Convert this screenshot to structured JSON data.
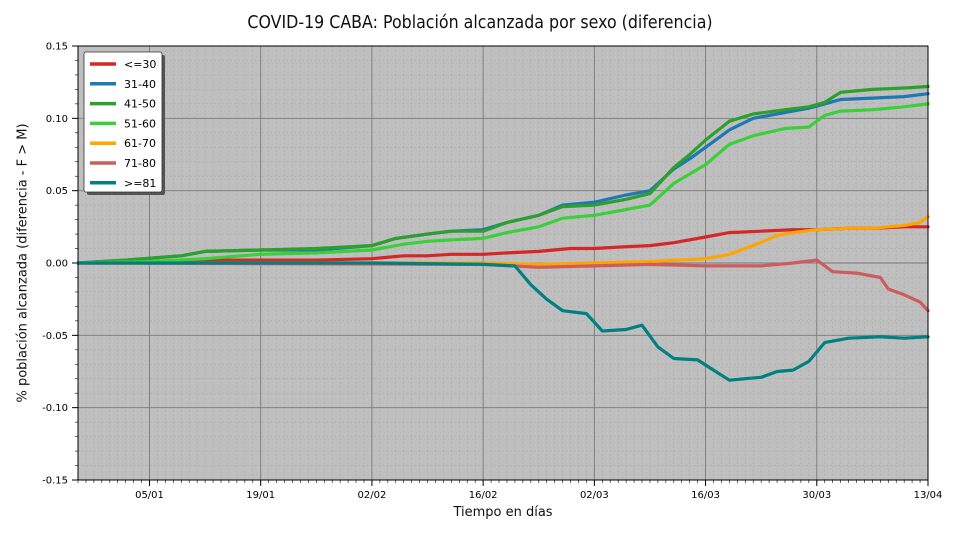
{
  "chart_data": {
    "type": "line",
    "title": "COVID-19 CABA: Población alcanzada por sexo (diferencia)",
    "xlabel": "Tiempo en días",
    "ylabel": "% población alcanzada (diferencia - F > M)",
    "x_type": "date",
    "xlim": [
      "2021-12-27",
      "2022-04-13"
    ],
    "ylim": [
      -0.15,
      0.15
    ],
    "x_ticks": [
      {
        "date": "2022-01-05",
        "label": "05/01"
      },
      {
        "date": "2022-01-19",
        "label": "19/01"
      },
      {
        "date": "2022-02-02",
        "label": "02/02"
      },
      {
        "date": "2022-02-16",
        "label": "16/02"
      },
      {
        "date": "2022-03-02",
        "label": "02/03"
      },
      {
        "date": "2022-03-16",
        "label": "16/03"
      },
      {
        "date": "2022-03-30",
        "label": "30/03"
      },
      {
        "date": "2022-04-13",
        "label": "13/04"
      }
    ],
    "y_ticks": [
      {
        "value": -0.15,
        "label": "-0.15"
      },
      {
        "value": -0.1,
        "label": "-0.10"
      },
      {
        "value": -0.05,
        "label": "-0.05"
      },
      {
        "value": 0.0,
        "label": "0.00"
      },
      {
        "value": 0.05,
        "label": "0.05"
      },
      {
        "value": 0.1,
        "label": "0.10"
      },
      {
        "value": 0.15,
        "label": "0.15"
      }
    ],
    "grid": true,
    "background": "#bfbfbf",
    "legend_position": "top-left",
    "series": [
      {
        "name": "<=30",
        "color": "#d62728",
        "points": [
          [
            "2021-12-27",
            0.0
          ],
          [
            "2022-01-05",
            0.0
          ],
          [
            "2022-01-12",
            0.002
          ],
          [
            "2022-01-19",
            0.002
          ],
          [
            "2022-01-26",
            0.002
          ],
          [
            "2022-02-02",
            0.003
          ],
          [
            "2022-02-06",
            0.005
          ],
          [
            "2022-02-09",
            0.005
          ],
          [
            "2022-02-12",
            0.006
          ],
          [
            "2022-02-16",
            0.006
          ],
          [
            "2022-02-19",
            0.007
          ],
          [
            "2022-02-23",
            0.008
          ],
          [
            "2022-02-27",
            0.01
          ],
          [
            "2022-03-02",
            0.01
          ],
          [
            "2022-03-05",
            0.011
          ],
          [
            "2022-03-09",
            0.012
          ],
          [
            "2022-03-12",
            0.014
          ],
          [
            "2022-03-16",
            0.018
          ],
          [
            "2022-03-19",
            0.021
          ],
          [
            "2022-03-23",
            0.022
          ],
          [
            "2022-03-27",
            0.023
          ],
          [
            "2022-03-30",
            0.023
          ],
          [
            "2022-04-03",
            0.024
          ],
          [
            "2022-04-06",
            0.024
          ],
          [
            "2022-04-10",
            0.025
          ],
          [
            "2022-04-13",
            0.025
          ]
        ]
      },
      {
        "name": "31-40",
        "color": "#1f77b4",
        "points": [
          [
            "2021-12-27",
            0.0
          ],
          [
            "2022-01-02",
            0.002
          ],
          [
            "2022-01-09",
            0.005
          ],
          [
            "2022-01-12",
            0.008
          ],
          [
            "2022-01-19",
            0.009
          ],
          [
            "2022-01-26",
            0.009
          ],
          [
            "2022-02-02",
            0.012
          ],
          [
            "2022-02-05",
            0.017
          ],
          [
            "2022-02-09",
            0.02
          ],
          [
            "2022-02-12",
            0.022
          ],
          [
            "2022-02-16",
            0.023
          ],
          [
            "2022-02-19",
            0.028
          ],
          [
            "2022-02-23",
            0.033
          ],
          [
            "2022-02-26",
            0.04
          ],
          [
            "2022-03-02",
            0.042
          ],
          [
            "2022-03-06",
            0.047
          ],
          [
            "2022-03-09",
            0.05
          ],
          [
            "2022-03-12",
            0.065
          ],
          [
            "2022-03-14",
            0.072
          ],
          [
            "2022-03-16",
            0.08
          ],
          [
            "2022-03-19",
            0.092
          ],
          [
            "2022-03-22",
            0.1
          ],
          [
            "2022-03-26",
            0.104
          ],
          [
            "2022-03-29",
            0.107
          ],
          [
            "2022-03-31",
            0.11
          ],
          [
            "2022-04-02",
            0.113
          ],
          [
            "2022-04-06",
            0.114
          ],
          [
            "2022-04-10",
            0.115
          ],
          [
            "2022-04-13",
            0.117
          ]
        ]
      },
      {
        "name": "41-50",
        "color": "#2ca02c",
        "points": [
          [
            "2021-12-27",
            0.0
          ],
          [
            "2022-01-02",
            0.002
          ],
          [
            "2022-01-09",
            0.005
          ],
          [
            "2022-01-12",
            0.008
          ],
          [
            "2022-01-19",
            0.009
          ],
          [
            "2022-01-26",
            0.01
          ],
          [
            "2022-02-02",
            0.012
          ],
          [
            "2022-02-05",
            0.017
          ],
          [
            "2022-02-09",
            0.02
          ],
          [
            "2022-02-12",
            0.022
          ],
          [
            "2022-02-16",
            0.022
          ],
          [
            "2022-02-19",
            0.028
          ],
          [
            "2022-02-23",
            0.033
          ],
          [
            "2022-02-26",
            0.039
          ],
          [
            "2022-03-02",
            0.04
          ],
          [
            "2022-03-06",
            0.044
          ],
          [
            "2022-03-09",
            0.048
          ],
          [
            "2022-03-12",
            0.066
          ],
          [
            "2022-03-14",
            0.075
          ],
          [
            "2022-03-16",
            0.085
          ],
          [
            "2022-03-19",
            0.098
          ],
          [
            "2022-03-22",
            0.103
          ],
          [
            "2022-03-26",
            0.106
          ],
          [
            "2022-03-29",
            0.108
          ],
          [
            "2022-03-31",
            0.111
          ],
          [
            "2022-04-02",
            0.118
          ],
          [
            "2022-04-06",
            0.12
          ],
          [
            "2022-04-10",
            0.121
          ],
          [
            "2022-04-13",
            0.122
          ]
        ]
      },
      {
        "name": "51-60",
        "color": "#39d039",
        "points": [
          [
            "2021-12-27",
            0.0
          ],
          [
            "2022-01-05",
            0.001
          ],
          [
            "2022-01-12",
            0.003
          ],
          [
            "2022-01-19",
            0.006
          ],
          [
            "2022-01-26",
            0.007
          ],
          [
            "2022-02-02",
            0.009
          ],
          [
            "2022-02-06",
            0.013
          ],
          [
            "2022-02-09",
            0.015
          ],
          [
            "2022-02-12",
            0.016
          ],
          [
            "2022-02-16",
            0.017
          ],
          [
            "2022-02-19",
            0.021
          ],
          [
            "2022-02-23",
            0.025
          ],
          [
            "2022-02-26",
            0.031
          ],
          [
            "2022-03-02",
            0.033
          ],
          [
            "2022-03-06",
            0.037
          ],
          [
            "2022-03-09",
            0.04
          ],
          [
            "2022-03-12",
            0.055
          ],
          [
            "2022-03-16",
            0.068
          ],
          [
            "2022-03-19",
            0.082
          ],
          [
            "2022-03-22",
            0.088
          ],
          [
            "2022-03-26",
            0.093
          ],
          [
            "2022-03-29",
            0.094
          ],
          [
            "2022-03-31",
            0.102
          ],
          [
            "2022-04-02",
            0.105
          ],
          [
            "2022-04-06",
            0.106
          ],
          [
            "2022-04-10",
            0.108
          ],
          [
            "2022-04-13",
            0.11
          ]
        ]
      },
      {
        "name": "61-70",
        "color": "#ffa500",
        "points": [
          [
            "2021-12-27",
            0.0
          ],
          [
            "2022-02-16",
            0.0
          ],
          [
            "2022-02-23",
            -0.001
          ],
          [
            "2022-03-02",
            0.0
          ],
          [
            "2022-03-09",
            0.001
          ],
          [
            "2022-03-16",
            0.003
          ],
          [
            "2022-03-19",
            0.006
          ],
          [
            "2022-03-22",
            0.012
          ],
          [
            "2022-03-25",
            0.019
          ],
          [
            "2022-03-27",
            0.021
          ],
          [
            "2022-03-30",
            0.023
          ],
          [
            "2022-04-03",
            0.024
          ],
          [
            "2022-04-06",
            0.024
          ],
          [
            "2022-04-10",
            0.026
          ],
          [
            "2022-04-12",
            0.028
          ],
          [
            "2022-04-13",
            0.032
          ]
        ]
      },
      {
        "name": "71-80",
        "color": "#cd5c5c",
        "points": [
          [
            "2021-12-27",
            0.0
          ],
          [
            "2022-02-16",
            -0.001
          ],
          [
            "2022-02-23",
            -0.003
          ],
          [
            "2022-03-02",
            -0.002
          ],
          [
            "2022-03-09",
            -0.001
          ],
          [
            "2022-03-16",
            -0.002
          ],
          [
            "2022-03-23",
            -0.002
          ],
          [
            "2022-03-27",
            0.0
          ],
          [
            "2022-03-30",
            0.002
          ],
          [
            "2022-04-01",
            -0.006
          ],
          [
            "2022-04-04",
            -0.007
          ],
          [
            "2022-04-07",
            -0.01
          ],
          [
            "2022-04-08",
            -0.018
          ],
          [
            "2022-04-10",
            -0.022
          ],
          [
            "2022-04-12",
            -0.027
          ],
          [
            "2022-04-13",
            -0.033
          ]
        ]
      },
      {
        "name": ">=81",
        "color": "#008080",
        "points": [
          [
            "2021-12-27",
            0.0
          ],
          [
            "2022-02-02",
            0.0
          ],
          [
            "2022-02-16",
            -0.001
          ],
          [
            "2022-02-20",
            -0.002
          ],
          [
            "2022-02-22",
            -0.015
          ],
          [
            "2022-02-24",
            -0.025
          ],
          [
            "2022-02-26",
            -0.033
          ],
          [
            "2022-03-01",
            -0.035
          ],
          [
            "2022-03-03",
            -0.047
          ],
          [
            "2022-03-06",
            -0.046
          ],
          [
            "2022-03-08",
            -0.043
          ],
          [
            "2022-03-10",
            -0.058
          ],
          [
            "2022-03-12",
            -0.066
          ],
          [
            "2022-03-15",
            -0.067
          ],
          [
            "2022-03-17",
            -0.074
          ],
          [
            "2022-03-19",
            -0.081
          ],
          [
            "2022-03-21",
            -0.08
          ],
          [
            "2022-03-23",
            -0.079
          ],
          [
            "2022-03-25",
            -0.075
          ],
          [
            "2022-03-27",
            -0.074
          ],
          [
            "2022-03-29",
            -0.068
          ],
          [
            "2022-03-31",
            -0.055
          ],
          [
            "2022-04-03",
            -0.052
          ],
          [
            "2022-04-07",
            -0.051
          ],
          [
            "2022-04-10",
            -0.052
          ],
          [
            "2022-04-13",
            -0.051
          ]
        ]
      }
    ]
  }
}
